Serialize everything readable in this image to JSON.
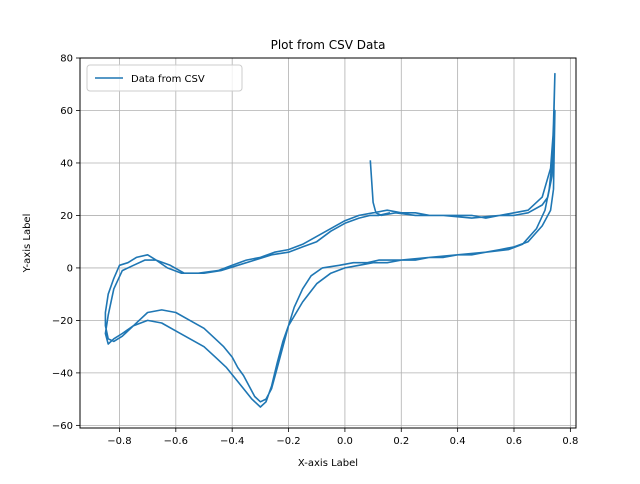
{
  "chart_data": {
    "type": "line",
    "title": "Plot from CSV Data",
    "xlabel": "X-axis Label",
    "ylabel": "Y-axis Label",
    "xlim": [
      -0.94,
      0.82
    ],
    "ylim": [
      -61,
      80
    ],
    "xticks": [
      -0.8,
      -0.6,
      -0.4,
      -0.2,
      0.0,
      0.2,
      0.4,
      0.6,
      0.8
    ],
    "xtick_labels": [
      "−0.8",
      "−0.6",
      "−0.4",
      "−0.2",
      "0.0",
      "0.2",
      "0.4",
      "0.6",
      "0.8"
    ],
    "yticks": [
      -60,
      -40,
      -20,
      0,
      20,
      40,
      60,
      80
    ],
    "ytick_labels": [
      "−60",
      "−40",
      "−20",
      "0",
      "20",
      "40",
      "60",
      "80"
    ],
    "grid": true,
    "legend_position": "top-left",
    "color": "#1f77b4",
    "series": [
      {
        "name": "Data from CSV",
        "x": [
          0.09,
          0.1,
          0.11,
          0.13,
          0.18,
          0.25,
          0.35,
          0.45,
          0.55,
          0.6,
          0.65,
          0.7,
          0.72,
          0.735,
          0.74,
          0.742,
          0.745,
          0.74,
          0.735,
          0.725,
          0.71,
          0.68,
          0.63,
          0.58,
          0.5,
          0.4,
          0.3,
          0.2,
          0.12,
          0.08,
          0.03,
          -0.02,
          -0.08,
          -0.12,
          -0.15,
          -0.18,
          -0.2,
          -0.22,
          -0.24,
          -0.26,
          -0.28,
          -0.3,
          -0.32,
          -0.34,
          -0.36,
          -0.38,
          -0.4,
          -0.43,
          -0.46,
          -0.5,
          -0.55,
          -0.6,
          -0.65,
          -0.7,
          -0.75,
          -0.79,
          -0.82,
          -0.84,
          -0.85,
          -0.85,
          -0.84,
          -0.82,
          -0.8,
          -0.77,
          -0.74,
          -0.7,
          -0.67,
          -0.63,
          -0.58,
          -0.52,
          -0.45,
          -0.4,
          -0.35,
          -0.3,
          -0.25,
          -0.2,
          -0.15,
          -0.1,
          -0.05,
          0.0,
          0.05,
          0.1,
          0.15,
          0.2,
          0.25,
          0.3,
          0.35,
          0.4,
          0.45,
          0.5,
          0.55,
          0.6,
          0.65,
          0.7,
          0.73,
          0.745,
          0.74,
          0.73,
          0.7,
          0.65,
          0.6,
          0.55,
          0.5,
          0.45,
          0.4,
          0.35,
          0.3,
          0.25,
          0.2,
          0.15,
          0.1,
          0.05,
          0.0,
          -0.05,
          -0.1,
          -0.15,
          -0.2,
          -0.22,
          -0.24,
          -0.26,
          -0.28,
          -0.3,
          -0.33,
          -0.36,
          -0.39,
          -0.42,
          -0.46,
          -0.5,
          -0.55,
          -0.6,
          -0.65,
          -0.7,
          -0.75,
          -0.79,
          -0.82,
          -0.84,
          -0.85,
          -0.84,
          -0.82,
          -0.79,
          -0.75,
          -0.71,
          -0.67,
          -0.62,
          -0.57,
          -0.5,
          -0.44,
          -0.38,
          -0.32,
          -0.26,
          -0.2,
          -0.15,
          -0.1,
          -0.05,
          0.0,
          0.05,
          0.09,
          0.12,
          0.16
        ],
        "y": [
          41,
          25,
          21,
          20,
          21,
          20,
          20,
          19,
          20,
          20,
          21,
          24,
          27,
          35,
          45,
          60,
          74,
          55,
          40,
          30,
          22,
          15,
          9,
          7,
          6,
          5,
          4,
          3,
          3,
          2,
          2,
          1,
          0,
          -3,
          -8,
          -15,
          -22,
          -30,
          -38,
          -46,
          -50,
          -51,
          -49,
          -45,
          -41,
          -38,
          -34,
          -30,
          -27,
          -23,
          -20,
          -17,
          -16,
          -17,
          -22,
          -26,
          -28,
          -27,
          -22,
          -17,
          -10,
          -4,
          1,
          2,
          4,
          5,
          3,
          0,
          -2,
          -2,
          -1,
          1,
          3,
          4,
          6,
          7,
          9,
          12,
          15,
          18,
          20,
          21,
          22,
          21,
          21,
          20,
          20,
          20,
          20,
          19,
          20,
          21,
          22,
          27,
          38,
          60,
          30,
          22,
          16,
          10,
          8,
          7,
          6,
          5,
          5,
          4,
          4,
          3,
          3,
          2,
          2,
          1,
          0,
          -2,
          -6,
          -13,
          -22,
          -28,
          -36,
          -45,
          -51,
          -53,
          -50,
          -46,
          -42,
          -38,
          -34,
          -30,
          -27,
          -24,
          -21,
          -20,
          -22,
          -25,
          -27,
          -29,
          -25,
          -18,
          -8,
          -1,
          1,
          3,
          3,
          1,
          -2,
          -2,
          -1,
          1,
          3,
          5,
          6,
          8,
          10,
          14,
          17,
          19,
          20,
          20,
          21
        ]
      }
    ]
  }
}
